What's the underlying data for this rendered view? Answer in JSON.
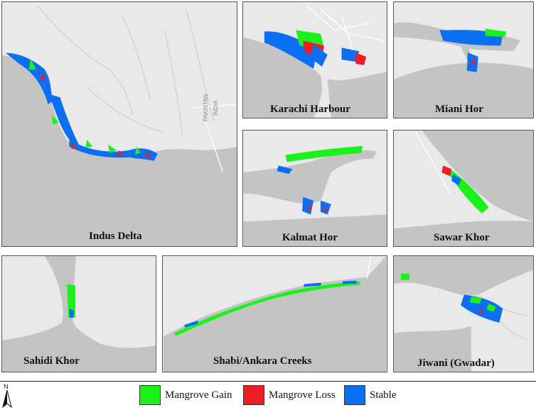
{
  "colors": {
    "gain": "#1bf21b",
    "loss": "#ee1c25",
    "stable": "#0b6ff2",
    "land": "#e9e9e9",
    "water": "#c4c4c4"
  },
  "panels": {
    "indus": {
      "label": "Indus Delta",
      "place1": "PAKISTAN",
      "place2": "INDIA"
    },
    "karachi": {
      "label": "Karachi Harbour"
    },
    "miani": {
      "label": "Miani Hor"
    },
    "kalmat": {
      "label": "Kalmat Hor"
    },
    "sawar": {
      "label": "Sawar Khor"
    },
    "sahidi": {
      "label": "Sahidi Khor"
    },
    "shabi": {
      "label": "Shabi/Ankara Creeks"
    },
    "jiwani": {
      "label": "Jiwani (Gwadar)"
    }
  },
  "north_arrow": {
    "label": "N",
    "icon": "north-arrow-icon"
  },
  "legend": {
    "items": [
      {
        "label": "Mangrove Gain",
        "color": "#1bf21b"
      },
      {
        "label": "Mangrove Loss",
        "color": "#ee1c25"
      },
      {
        "label": "Stable",
        "color": "#0b6ff2"
      }
    ]
  }
}
